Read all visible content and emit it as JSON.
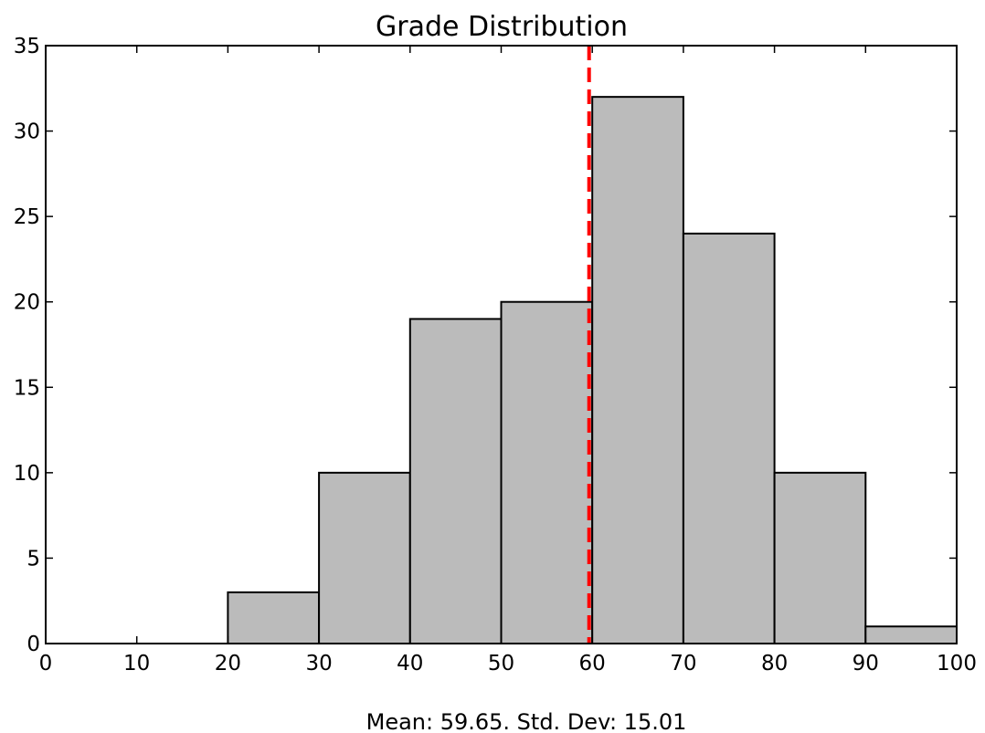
{
  "chart_data": {
    "type": "bar",
    "title": "Grade Distribution",
    "caption": "Mean: 59.65. Std. Dev: 15.01",
    "bins": [
      {
        "start": 0,
        "end": 10,
        "count": 0
      },
      {
        "start": 10,
        "end": 20,
        "count": 0
      },
      {
        "start": 20,
        "end": 30,
        "count": 3
      },
      {
        "start": 30,
        "end": 40,
        "count": 10
      },
      {
        "start": 40,
        "end": 50,
        "count": 19
      },
      {
        "start": 50,
        "end": 60,
        "count": 20
      },
      {
        "start": 60,
        "end": 70,
        "count": 32
      },
      {
        "start": 70,
        "end": 80,
        "count": 24
      },
      {
        "start": 80,
        "end": 90,
        "count": 10
      },
      {
        "start": 90,
        "end": 100,
        "count": 1
      }
    ],
    "mean": 59.65,
    "std_dev": 15.01,
    "xlim": [
      0,
      100
    ],
    "ylim": [
      0,
      35
    ],
    "xticks": [
      0,
      10,
      20,
      30,
      40,
      50,
      60,
      70,
      80,
      90,
      100
    ],
    "yticks": [
      0,
      5,
      10,
      15,
      20,
      25,
      30,
      35
    ],
    "grid": false,
    "colors": {
      "bar_fill": "#bbbbbb",
      "bar_edge": "#000000",
      "mean_line": "#ff0000"
    }
  }
}
